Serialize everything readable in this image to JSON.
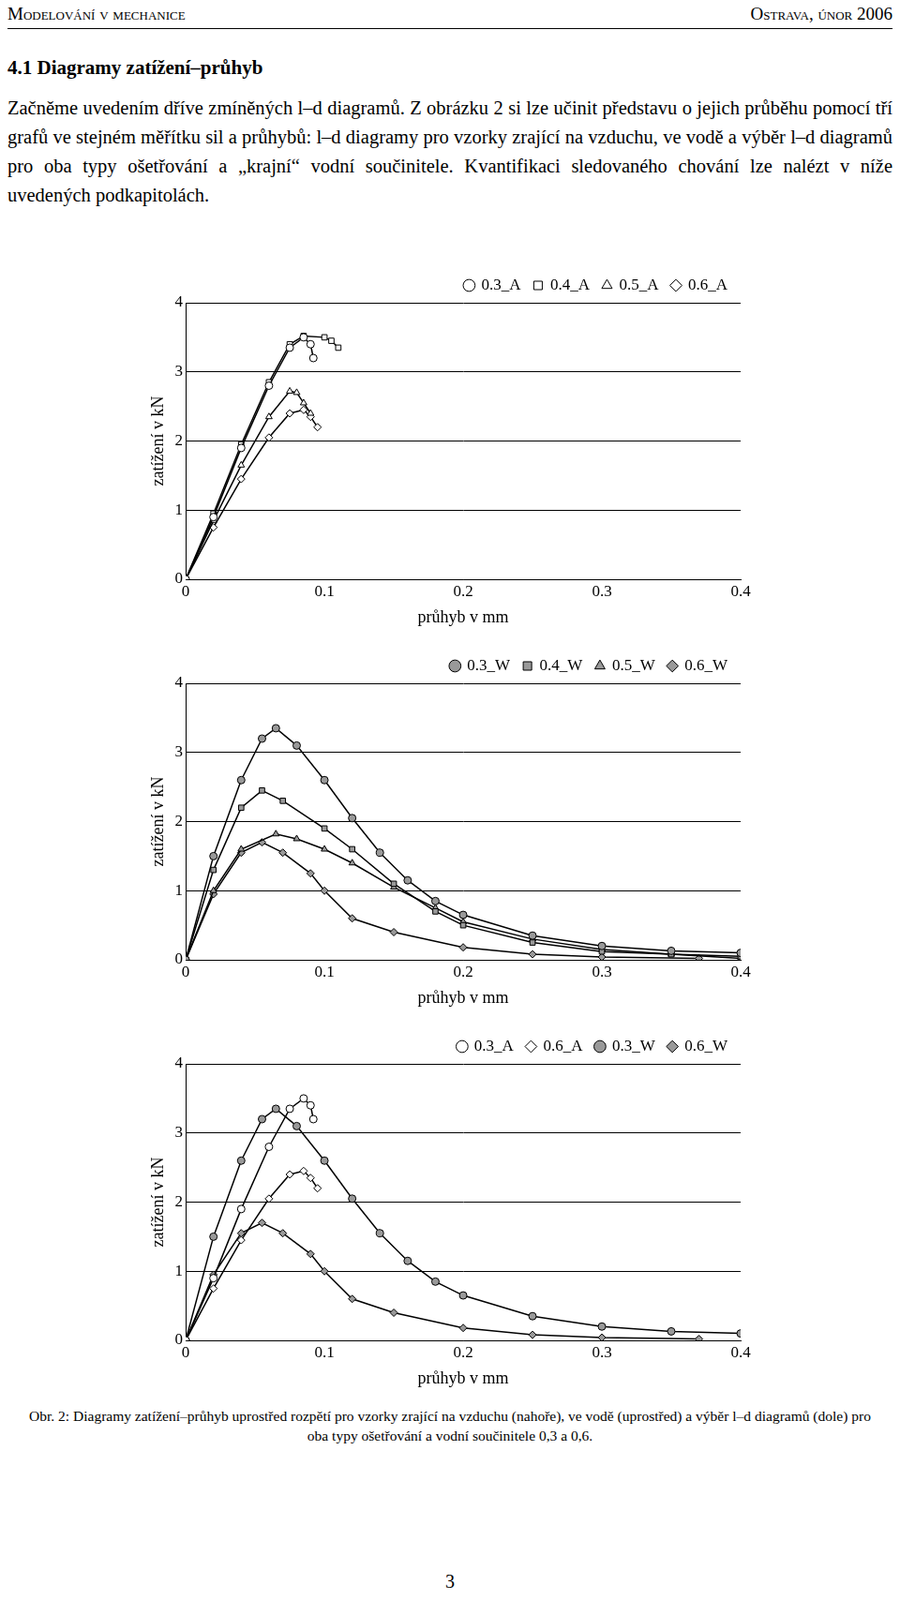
{
  "header": {
    "left": "Modelování v mechanice",
    "right": "Ostrava, únor 2006"
  },
  "section_title": "4.1 Diagramy zatížení–průhyb",
  "paragraph": "Začněme uvedením dříve zmíněných l–d diagramů. Z obrázku 2 si lze učinit představu o jejich průběhu pomocí tří grafů ve stejném měřítku sil a průhybů: l–d diagramy pro vzorky zrající na vzduchu, ve vodě a výběr l–d diagramů pro oba typy ošetřování a „krajní“ vodní součinitele. Kvantifikaci sledovaného chování lze nalézt v níže uvedených podkapitolách.",
  "chart_data": [
    {
      "type": "line",
      "x_label": "průhyb v mm",
      "y_label": "zatížení v kN",
      "xlim": [
        0,
        0.4
      ],
      "xticks": [
        0,
        0.1,
        0.2,
        0.3,
        0.4
      ],
      "ylim": [
        0,
        4
      ],
      "yticks": [
        0,
        1,
        2,
        3,
        4
      ],
      "grid": "y",
      "legend": "upper right",
      "series": [
        {
          "name": "0.3_A",
          "color": "#ffffff",
          "marker": "circle",
          "line_style": "solid",
          "x": [
            0,
            0.02,
            0.04,
            0.06,
            0.075,
            0.085,
            0.09,
            0.092
          ],
          "values": [
            0,
            0.9,
            1.9,
            2.8,
            3.35,
            3.5,
            3.4,
            3.2
          ]
        },
        {
          "name": "0.4_A",
          "color": "#ffffff",
          "marker": "square",
          "line_style": "solid",
          "x": [
            0,
            0.02,
            0.04,
            0.06,
            0.075,
            0.085,
            0.1,
            0.105,
            0.11
          ],
          "values": [
            0,
            0.95,
            1.95,
            2.85,
            3.4,
            3.52,
            3.5,
            3.45,
            3.35
          ]
        },
        {
          "name": "0.5_A",
          "color": "#ffffff",
          "marker": "triangle",
          "line_style": "solid",
          "x": [
            0,
            0.02,
            0.04,
            0.06,
            0.075,
            0.08,
            0.085,
            0.09
          ],
          "values": [
            0,
            0.85,
            1.65,
            2.35,
            2.72,
            2.7,
            2.55,
            2.4
          ]
        },
        {
          "name": "0.6_A",
          "color": "#ffffff",
          "marker": "diamond",
          "line_style": "solid",
          "x": [
            0,
            0.02,
            0.04,
            0.06,
            0.075,
            0.085,
            0.09,
            0.095
          ],
          "values": [
            0,
            0.75,
            1.45,
            2.05,
            2.4,
            2.45,
            2.35,
            2.2
          ]
        }
      ]
    },
    {
      "type": "line",
      "x_label": "průhyb v mm",
      "y_label": "zatížení v kN",
      "xlim": [
        0,
        0.4
      ],
      "xticks": [
        0,
        0.1,
        0.2,
        0.3,
        0.4
      ],
      "ylim": [
        0,
        4
      ],
      "yticks": [
        0,
        1,
        2,
        3,
        4
      ],
      "grid": "y",
      "legend": "upper right",
      "series": [
        {
          "name": "0.3_W",
          "color": "#999999",
          "marker": "circle",
          "line_style": "solid",
          "x": [
            0,
            0.02,
            0.04,
            0.055,
            0.065,
            0.08,
            0.1,
            0.12,
            0.14,
            0.16,
            0.18,
            0.2,
            0.25,
            0.3,
            0.35,
            0.4
          ],
          "values": [
            0,
            1.5,
            2.6,
            3.2,
            3.35,
            3.1,
            2.6,
            2.05,
            1.55,
            1.15,
            0.85,
            0.65,
            0.35,
            0.2,
            0.13,
            0.1
          ]
        },
        {
          "name": "0.4_W",
          "color": "#999999",
          "marker": "square",
          "line_style": "solid",
          "x": [
            0,
            0.02,
            0.04,
            0.055,
            0.07,
            0.1,
            0.12,
            0.15,
            0.18,
            0.2,
            0.25,
            0.3,
            0.35,
            0.4
          ],
          "values": [
            0,
            1.3,
            2.2,
            2.45,
            2.3,
            1.9,
            1.6,
            1.1,
            0.7,
            0.5,
            0.25,
            0.12,
            0.08,
            0.05
          ]
        },
        {
          "name": "0.5_W",
          "color": "#999999",
          "marker": "triangle",
          "line_style": "solid",
          "x": [
            0,
            0.02,
            0.04,
            0.065,
            0.08,
            0.1,
            0.12,
            0.15,
            0.18,
            0.2,
            0.25,
            0.3,
            0.35,
            0.4
          ],
          "values": [
            0,
            1.0,
            1.6,
            1.82,
            1.75,
            1.6,
            1.4,
            1.05,
            0.75,
            0.55,
            0.3,
            0.15,
            0.08,
            0.02
          ]
        },
        {
          "name": "0.6_W",
          "color": "#999999",
          "marker": "diamond",
          "line_style": "solid",
          "x": [
            0,
            0.02,
            0.04,
            0.055,
            0.07,
            0.09,
            0.1,
            0.12,
            0.15,
            0.2,
            0.25,
            0.3,
            0.37
          ],
          "values": [
            0,
            0.95,
            1.55,
            1.7,
            1.55,
            1.25,
            1.0,
            0.6,
            0.4,
            0.18,
            0.08,
            0.04,
            0.02
          ]
        }
      ]
    },
    {
      "type": "line",
      "x_label": "průhyb v mm",
      "y_label": "zatížení v kN",
      "xlim": [
        0,
        0.4
      ],
      "xticks": [
        0,
        0.1,
        0.2,
        0.3,
        0.4
      ],
      "ylim": [
        0,
        4
      ],
      "yticks": [
        0,
        1,
        2,
        3,
        4
      ],
      "grid": "y",
      "legend": "upper right",
      "series": [
        {
          "name": "0.3_A",
          "color": "#ffffff",
          "marker": "circle",
          "line_style": "solid",
          "x": [
            0,
            0.02,
            0.04,
            0.06,
            0.075,
            0.085,
            0.09,
            0.092
          ],
          "values": [
            0,
            0.9,
            1.9,
            2.8,
            3.35,
            3.5,
            3.4,
            3.2
          ]
        },
        {
          "name": "0.6_A",
          "color": "#ffffff",
          "marker": "diamond",
          "line_style": "solid",
          "x": [
            0,
            0.02,
            0.04,
            0.06,
            0.075,
            0.085,
            0.09,
            0.095
          ],
          "values": [
            0,
            0.75,
            1.45,
            2.05,
            2.4,
            2.45,
            2.35,
            2.2
          ]
        },
        {
          "name": "0.3_W",
          "color": "#999999",
          "marker": "circle",
          "line_style": "solid",
          "x": [
            0,
            0.02,
            0.04,
            0.055,
            0.065,
            0.08,
            0.1,
            0.12,
            0.14,
            0.16,
            0.18,
            0.2,
            0.25,
            0.3,
            0.35,
            0.4
          ],
          "values": [
            0,
            1.5,
            2.6,
            3.2,
            3.35,
            3.1,
            2.6,
            2.05,
            1.55,
            1.15,
            0.85,
            0.65,
            0.35,
            0.2,
            0.13,
            0.1
          ]
        },
        {
          "name": "0.6_W",
          "color": "#999999",
          "marker": "diamond",
          "line_style": "solid",
          "x": [
            0,
            0.02,
            0.04,
            0.055,
            0.07,
            0.09,
            0.1,
            0.12,
            0.15,
            0.2,
            0.25,
            0.3,
            0.37
          ],
          "values": [
            0,
            0.95,
            1.55,
            1.7,
            1.55,
            1.25,
            1.0,
            0.6,
            0.4,
            0.18,
            0.08,
            0.04,
            0.02
          ]
        }
      ]
    }
  ],
  "caption": "Obr. 2: Diagramy zatížení–průhyb uprostřed rozpětí pro vzorky zrající na vzduchu (nahoře), ve vodě (uprostřed) a výběr l–d diagramů (dole) pro oba typy ošetřování a vodní součinitele 0,3 a 0,6.",
  "page_number": 3
}
